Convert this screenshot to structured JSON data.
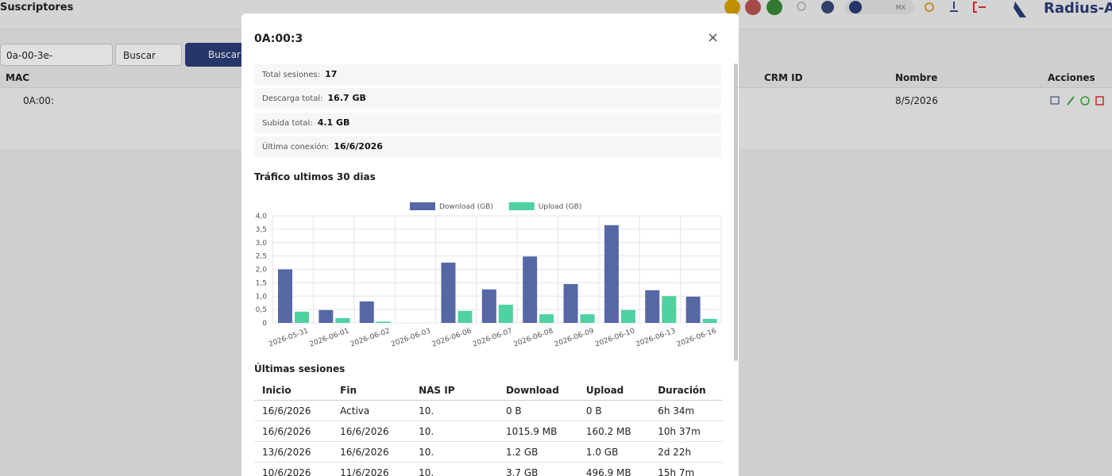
{
  "header": {
    "title": "Suscriptores",
    "lang": "MX",
    "brand": "Radius-AC"
  },
  "toolbar": {
    "search_value": "0a-00-3e-",
    "filter": "Buscar",
    "button": "Buscar"
  },
  "table": {
    "columns": [
      "MAC",
      "CRM ID",
      "Nombre",
      "Acciones"
    ],
    "rows": [
      [
        "0A:00:",
        "8/5/2026"
      ]
    ]
  },
  "modal": {
    "title": "0A:00:3",
    "stats": [
      {
        "label": "Total sesiones:",
        "value": "17"
      },
      {
        "label": "Descarga total:",
        "value": "16.7 GB"
      },
      {
        "label": "Subida total:",
        "value": "4.1 GB"
      },
      {
        "label": "Última conexión:",
        "value": "16/6/2026"
      }
    ],
    "chart_heading": "Tráfico ultimos 30 dias",
    "sessions_heading": "Últimas sesiones",
    "sessions": {
      "columns": [
        "Inicio",
        "Fin",
        "NAS IP",
        "Download",
        "Upload",
        "Duración"
      ],
      "rows": [
        [
          "16/6/2026",
          "Activa",
          "10.",
          "0 B",
          "0 B",
          "6h 34m"
        ],
        [
          "16/6/2026",
          "16/6/2026",
          "10.",
          "1015.9 MB",
          "160.2 MB",
          "10h 37m"
        ],
        [
          "13/6/2026",
          "16/6/2026",
          "10.",
          "1.2 GB",
          "1.0 GB",
          "2d 22h"
        ],
        [
          "10/6/2026",
          "11/6/2026",
          "10.",
          "3.7 GB",
          "496.9 MB",
          "15h 7m"
        ]
      ]
    }
  },
  "chart_data": {
    "type": "bar",
    "categories": [
      "2026-05-31",
      "2026-06-01",
      "2026-06-02",
      "2026-06-03",
      "2026-06-06",
      "2026-06-07",
      "2026-06-08",
      "2026-06-09",
      "2026-06-10",
      "2026-06-13",
      "2026-06-16"
    ],
    "series": [
      {
        "name": "Download (GB)",
        "color": "#5667a6",
        "values": [
          2.0,
          0.48,
          0.8,
          0,
          2.25,
          1.25,
          2.48,
          1.45,
          3.65,
          1.22,
          0.98
        ]
      },
      {
        "name": "Upload (GB)",
        "color": "#4fd1a0",
        "values": [
          0.42,
          0.18,
          0.05,
          0,
          0.45,
          0.68,
          0.32,
          0.32,
          0.48,
          1.0,
          0.15
        ]
      }
    ],
    "ylim": [
      0,
      4
    ],
    "yticks": [
      0,
      {
        "value": 0.5,
        "label": "0,5"
      },
      {
        "value": 1,
        "label": "1,0"
      },
      {
        "value": 1.5,
        "label": "1,5"
      },
      {
        "value": 2,
        "label": "2,0"
      },
      {
        "value": 2.5,
        "label": "2,5"
      },
      {
        "value": 3,
        "label": "3,0"
      },
      {
        "value": 3.5,
        "label": "3,5"
      },
      {
        "value": 4,
        "label": "4,0"
      }
    ],
    "grid": true,
    "legend": "top"
  }
}
